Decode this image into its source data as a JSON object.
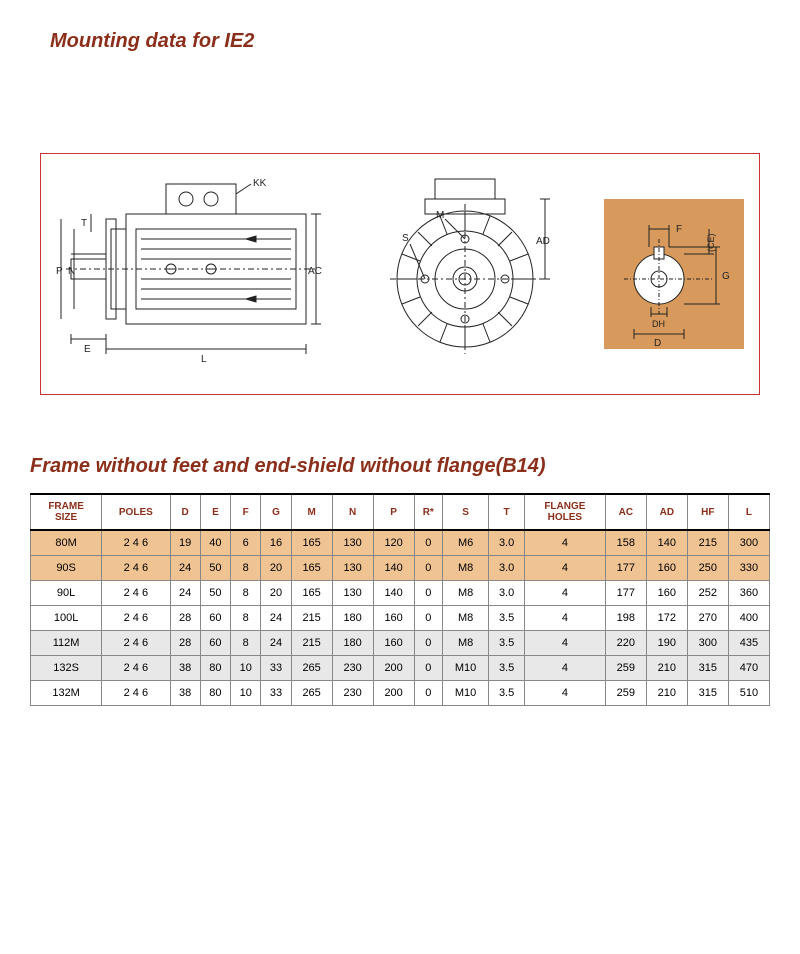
{
  "titles": {
    "main": "Mounting data for IE2",
    "table": "Frame without feet and end-shield without flange(B14)"
  },
  "drawing": {
    "border_color": "#c33",
    "shaft_box_bg": "#d89a5c",
    "line_color": "#222",
    "labels": {
      "KK": "KK",
      "T": "T",
      "P": "P",
      "N": "N",
      "E": "E",
      "L": "L",
      "AC": "AC",
      "M": "M",
      "S": "S",
      "AD": "AD",
      "F": "F",
      "CE": "(CE)",
      "G": "G",
      "DH": "DH",
      "D": "D"
    }
  },
  "table": {
    "columns": [
      "FRAME SIZE",
      "POLES",
      "D",
      "E",
      "F",
      "G",
      "M",
      "N",
      "P",
      "R*",
      "S",
      "T",
      "FLANGE HOLES",
      "AC",
      "AD",
      "HF",
      "L"
    ],
    "rows": [
      {
        "style": "hl",
        "cells": [
          "80M",
          "2 4 6",
          "19",
          "40",
          "6",
          "16",
          "165",
          "130",
          "120",
          "0",
          "M6",
          "3.0",
          "4",
          "158",
          "140",
          "215",
          "300"
        ]
      },
      {
        "style": "hl",
        "cells": [
          "90S",
          "2 4 6",
          "24",
          "50",
          "8",
          "20",
          "165",
          "130",
          "140",
          "0",
          "M8",
          "3.0",
          "4",
          "177",
          "160",
          "250",
          "330"
        ]
      },
      {
        "style": "",
        "cells": [
          "90L",
          "2 4 6",
          "24",
          "50",
          "8",
          "20",
          "165",
          "130",
          "140",
          "0",
          "M8",
          "3.0",
          "4",
          "177",
          "160",
          "252",
          "360"
        ]
      },
      {
        "style": "",
        "cells": [
          "100L",
          "2 4 6",
          "28",
          "60",
          "8",
          "24",
          "215",
          "180",
          "160",
          "0",
          "M8",
          "3.5",
          "4",
          "198",
          "172",
          "270",
          "400"
        ]
      },
      {
        "style": "gr",
        "cells": [
          "112M",
          "2 4 6",
          "28",
          "60",
          "8",
          "24",
          "215",
          "180",
          "160",
          "0",
          "M8",
          "3.5",
          "4",
          "220",
          "190",
          "300",
          "435"
        ]
      },
      {
        "style": "gr",
        "cells": [
          "132S",
          "2 4 6",
          "38",
          "80",
          "10",
          "33",
          "265",
          "230",
          "200",
          "0",
          "M10",
          "3.5",
          "4",
          "259",
          "210",
          "315",
          "470"
        ]
      },
      {
        "style": "",
        "cells": [
          "132M",
          "2 4 6",
          "38",
          "80",
          "10",
          "33",
          "265",
          "230",
          "200",
          "0",
          "M10",
          "3.5",
          "4",
          "259",
          "210",
          "315",
          "510"
        ]
      }
    ]
  }
}
